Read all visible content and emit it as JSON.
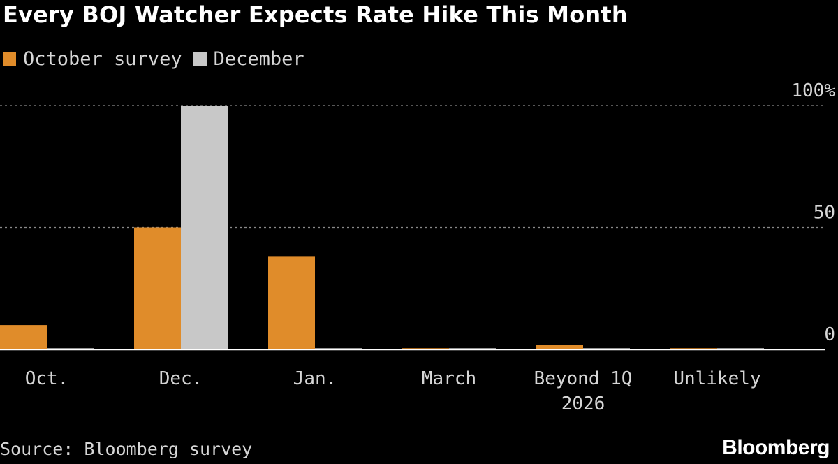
{
  "chart_data": {
    "type": "bar",
    "title": "Every BOJ Watcher Expects Rate Hike This Month",
    "categories": [
      "Oct.",
      "Dec.",
      "Jan.",
      "March",
      "Beyond 1Q 2026",
      "Unlikely"
    ],
    "category_lines": [
      [
        "Oct."
      ],
      [
        "Dec."
      ],
      [
        "Jan."
      ],
      [
        "March"
      ],
      [
        "Beyond 1Q",
        "2026"
      ],
      [
        "Unlikely"
      ]
    ],
    "series": [
      {
        "name": "October survey",
        "color": "#e08c2a",
        "values": [
          10,
          50,
          38,
          0.5,
          2,
          0.5
        ]
      },
      {
        "name": "December",
        "color": "#c8c8c8",
        "values": [
          0.5,
          100,
          0.5,
          0.5,
          0.5,
          0.5
        ]
      }
    ],
    "ylim": [
      0,
      100
    ],
    "yticks": [
      {
        "value": 0,
        "label": "0"
      },
      {
        "value": 50,
        "label": "50"
      },
      {
        "value": 100,
        "label": "100%"
      }
    ],
    "grid": true,
    "legend": "top-left",
    "xlabel": "",
    "ylabel": ""
  },
  "footer": {
    "source": "Source: Bloomberg survey",
    "brand": "Bloomberg"
  }
}
